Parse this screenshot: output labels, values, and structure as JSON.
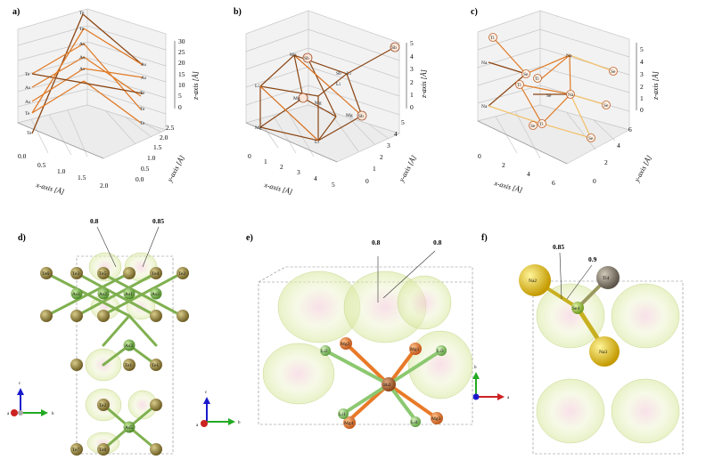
{
  "panels": [
    {
      "label": "a)",
      "xlabel": "x-axis [Å]",
      "ylabel": "y-axis [Å]",
      "zlabel": "z-axis [Å]",
      "xticks": [
        "0.0",
        "0.5",
        "1.0",
        "1.5",
        "2.0"
      ],
      "yticks": [
        "0.0",
        "0.5",
        "1.0",
        "1.5",
        "2.0",
        "2.5"
      ],
      "zticks": [
        "30",
        "25",
        "20",
        "15",
        "10",
        "5",
        "0"
      ],
      "atoms_left": [
        "Te",
        "Te",
        "As",
        "Te",
        "As",
        "Te",
        "Te"
      ],
      "atoms_mid": [
        "Te",
        "Te",
        "As",
        "As",
        "As"
      ],
      "atoms_right": [
        "As",
        "As",
        "Te",
        "Te",
        "Te"
      ]
    },
    {
      "label": "b)",
      "xlabel": "x-axis [Å]",
      "ylabel": "y-axis [Å]",
      "zlabel": "z-axis [Å]",
      "xticks": [
        "0",
        "1",
        "2",
        "3",
        "4",
        "5"
      ],
      "yticks": [
        "0",
        "1",
        "2",
        "3",
        "4",
        "5"
      ],
      "zticks": [
        "5",
        "4",
        "3",
        "2",
        "1",
        "0"
      ],
      "atoms": [
        "Sb",
        "Mg",
        "Sb",
        "Li",
        "Sb",
        "Li",
        "Mg",
        "Mg",
        "Li",
        "Mg",
        "Sb",
        "Sb",
        "Li"
      ]
    },
    {
      "label": "c)",
      "xlabel": "x-axis [Å]",
      "ylabel": "y-axis [Å]",
      "zlabel": "z-axis [Å]",
      "xticks": [
        "0",
        "2",
        "4",
        "6"
      ],
      "yticks": [
        "0",
        "2",
        "4",
        "6"
      ],
      "zticks": [
        "5",
        "4",
        "3",
        "2",
        "1",
        "0"
      ],
      "atoms": [
        "Ti",
        "Na",
        "Se",
        "Ti",
        "Na",
        "Ti",
        "Na",
        "Se",
        "Ti",
        "Ti",
        "Na",
        "Se",
        "Se",
        "Se",
        "Se"
      ]
    },
    {
      "label": "d)",
      "densities": [
        "0.8",
        "0.85"
      ],
      "atom_labels": [
        "Te6",
        "Te3",
        "Te5",
        "Te4",
        "Te2",
        "As1",
        "As2",
        "As1",
        "As2",
        "As3",
        "Te1",
        "As4",
        "Te2",
        "Te1",
        "As5",
        "Te7",
        "Te8"
      ],
      "axes": {
        "c": "c",
        "a": "a",
        "b": "b"
      }
    },
    {
      "label": "e)",
      "densities": [
        "0.8",
        "0.8"
      ],
      "atom_labels": [
        "Sb2",
        "Mg2",
        "Mg1",
        "Mg3",
        "Mg4",
        "Li2",
        "Li3",
        "Li1",
        "Li4"
      ],
      "axes": {
        "c": "c",
        "b": "b",
        "a": "a"
      }
    },
    {
      "label": "f)",
      "densities": [
        "0.85",
        "0.9"
      ],
      "atom_labels": [
        "Na2",
        "Ti4",
        "Se4",
        "Na3"
      ],
      "axes": {
        "b": "b",
        "a": "a",
        "c": "c"
      }
    }
  ],
  "colors": {
    "as_bond": "#d9701e",
    "te_bond": "#8b4513",
    "te_atom": "#8c7a3a",
    "as_atom": "#7ab04a",
    "sb_atom": "#b06a3a",
    "mg_atom": "#e87a28",
    "li_atom": "#8cc870",
    "na_atom": "#f0c81e",
    "ti_atom": "#8c8070",
    "se_atom": "#98c040",
    "isosurface": "#dce8b0",
    "axis_c": "#1a1acc",
    "axis_b": "#22aa22",
    "axis_a": "#cc2222"
  }
}
